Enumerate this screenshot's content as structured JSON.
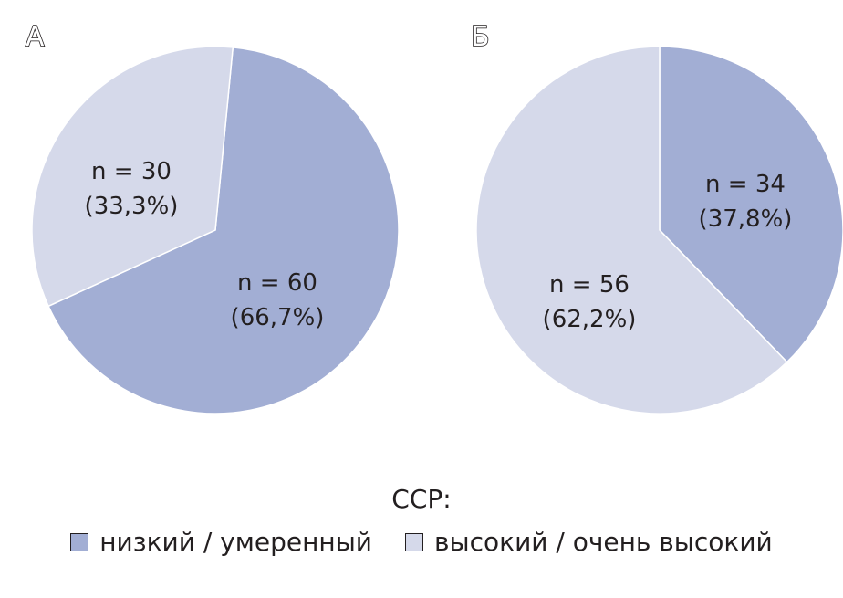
{
  "colors": {
    "low_moderate": "#a2aed4",
    "high_very_high": "#d5d9ea",
    "text": "#231f20"
  },
  "chart_data": [
    {
      "type": "pie",
      "panel": "А",
      "slices": [
        {
          "category": "низкий / умеренный",
          "n": 60,
          "percent": 66.7,
          "count_label": "n = 60",
          "percent_label": "(66,7%)"
        },
        {
          "category": "высокий / очень высокий",
          "n": 30,
          "percent": 33.3,
          "count_label": "n = 30",
          "percent_label": "(33,3%)"
        }
      ]
    },
    {
      "type": "pie",
      "panel": "Б",
      "slices": [
        {
          "category": "низкий / умеренный",
          "n": 34,
          "percent": 37.8,
          "count_label": "n = 34",
          "percent_label": "(37,8%)"
        },
        {
          "category": "высокий / очень высокий",
          "n": 56,
          "percent": 62.2,
          "count_label": "n = 56",
          "percent_label": "(62,2%)"
        }
      ]
    }
  ],
  "legend": {
    "title": "ССР:",
    "items": [
      {
        "label": "низкий / умеренный",
        "color": "#a2aed4"
      },
      {
        "label": "высокий / очень высокий",
        "color": "#d5d9ea"
      }
    ]
  }
}
